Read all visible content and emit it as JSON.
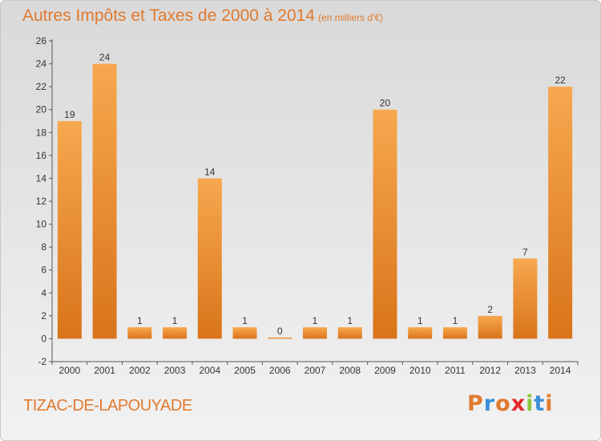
{
  "header": {
    "title": "Autres Impôts et Taxes de 2000 à 2014",
    "unit": "(en milliers d'€)"
  },
  "footer": {
    "commune": "TIZAC-DE-LAPOUYADE",
    "brand": "Proxiti"
  },
  "colors": {
    "bar_light": "#f7a84f",
    "bar_dark": "#d9741a",
    "title": "#e07a2e",
    "brand_letters": [
      "#e07a2e",
      "#3a8fd6",
      "#e07a2e",
      "#e5282a",
      "#8cc63f",
      "#3a8fd6",
      "#e07a2e"
    ]
  },
  "chart_data": {
    "type": "bar",
    "title": "Autres Impôts et Taxes de 2000 à 2014",
    "subtitle": "(en milliers d'€)",
    "categories": [
      "2000",
      "2001",
      "2002",
      "2003",
      "2004",
      "2005",
      "2006",
      "2007",
      "2008",
      "2009",
      "2010",
      "2011",
      "2012",
      "2013",
      "2014"
    ],
    "values": [
      19,
      24,
      1,
      1,
      14,
      1,
      0,
      1,
      1,
      20,
      1,
      1,
      2,
      7,
      22
    ],
    "data_labels": [
      "19",
      "24",
      "1",
      "1",
      "14",
      "1",
      "0",
      "1",
      "1",
      "20",
      "1",
      "1",
      "2",
      "7",
      "22"
    ],
    "ylim": [
      -2,
      26
    ],
    "yticks": [
      "-2",
      "0",
      "2",
      "4",
      "6",
      "8",
      "10",
      "12",
      "14",
      "16",
      "18",
      "20",
      "22",
      "24",
      "26"
    ],
    "grid": false,
    "legend": "none"
  }
}
